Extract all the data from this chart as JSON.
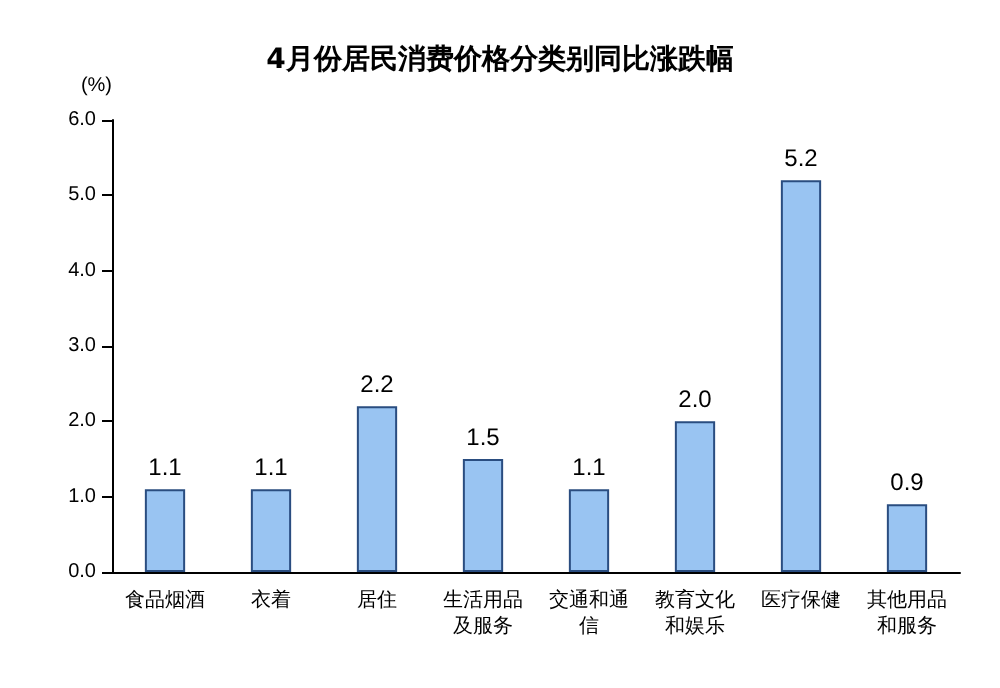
{
  "chart_data": {
    "type": "bar",
    "title": "4月份居民消费价格分类别同比涨跌幅",
    "ylabel": "(%)",
    "categories": [
      "食品烟酒",
      "衣着",
      "居住",
      "生活用品及服务",
      "交通和通信",
      "教育文化和娱乐",
      "医疗保健",
      "其他用品和服务"
    ],
    "values": [
      1.1,
      1.1,
      2.2,
      1.5,
      1.1,
      2.0,
      5.2,
      0.9
    ],
    "value_labels": [
      "1.1",
      "1.1",
      "2.2",
      "1.5",
      "1.1",
      "2.0",
      "5.2",
      "0.9"
    ],
    "color": "#99c4f2",
    "ylim": [
      0,
      6
    ],
    "yticks": [
      {
        "value": 0,
        "label": "0.0"
      },
      {
        "value": 1,
        "label": "1.0"
      },
      {
        "value": 2,
        "label": "2.0"
      },
      {
        "value": 3,
        "label": "3.0"
      },
      {
        "value": 4,
        "label": "4.0"
      },
      {
        "value": 5,
        "label": "5.0"
      },
      {
        "value": 6,
        "label": "6.0"
      }
    ],
    "grid": false
  }
}
